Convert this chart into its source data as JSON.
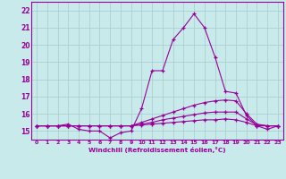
{
  "xlabel": "Windchill (Refroidissement éolien,°C)",
  "xlim": [
    -0.5,
    23.5
  ],
  "ylim": [
    14.5,
    22.5
  ],
  "yticks": [
    15,
    16,
    17,
    18,
    19,
    20,
    21,
    22
  ],
  "xticks": [
    0,
    1,
    2,
    3,
    4,
    5,
    6,
    7,
    8,
    9,
    10,
    11,
    12,
    13,
    14,
    15,
    16,
    17,
    18,
    19,
    20,
    21,
    22,
    23
  ],
  "background_color": "#c8eaea",
  "grid_color": "#a8caca",
  "line_color": "#990099",
  "series": [
    [
      15.3,
      15.3,
      15.3,
      15.4,
      15.1,
      15.0,
      15.0,
      14.6,
      14.9,
      15.0,
      16.3,
      18.5,
      18.5,
      20.3,
      21.0,
      21.8,
      21.0,
      19.3,
      17.3,
      17.2,
      15.9,
      15.3,
      15.1,
      15.3
    ],
    [
      15.3,
      15.3,
      15.3,
      15.3,
      15.3,
      15.3,
      15.3,
      15.3,
      15.3,
      15.3,
      15.5,
      15.7,
      15.9,
      16.1,
      16.3,
      16.5,
      16.65,
      16.75,
      16.8,
      16.75,
      16.0,
      15.4,
      15.3,
      15.3
    ],
    [
      15.3,
      15.3,
      15.3,
      15.3,
      15.3,
      15.3,
      15.3,
      15.3,
      15.3,
      15.3,
      15.4,
      15.5,
      15.65,
      15.75,
      15.85,
      15.95,
      16.05,
      16.1,
      16.1,
      16.1,
      15.7,
      15.35,
      15.3,
      15.3
    ],
    [
      15.3,
      15.3,
      15.3,
      15.3,
      15.3,
      15.3,
      15.3,
      15.3,
      15.3,
      15.3,
      15.35,
      15.4,
      15.45,
      15.5,
      15.55,
      15.6,
      15.65,
      15.65,
      15.7,
      15.65,
      15.5,
      15.3,
      15.3,
      15.3
    ]
  ]
}
